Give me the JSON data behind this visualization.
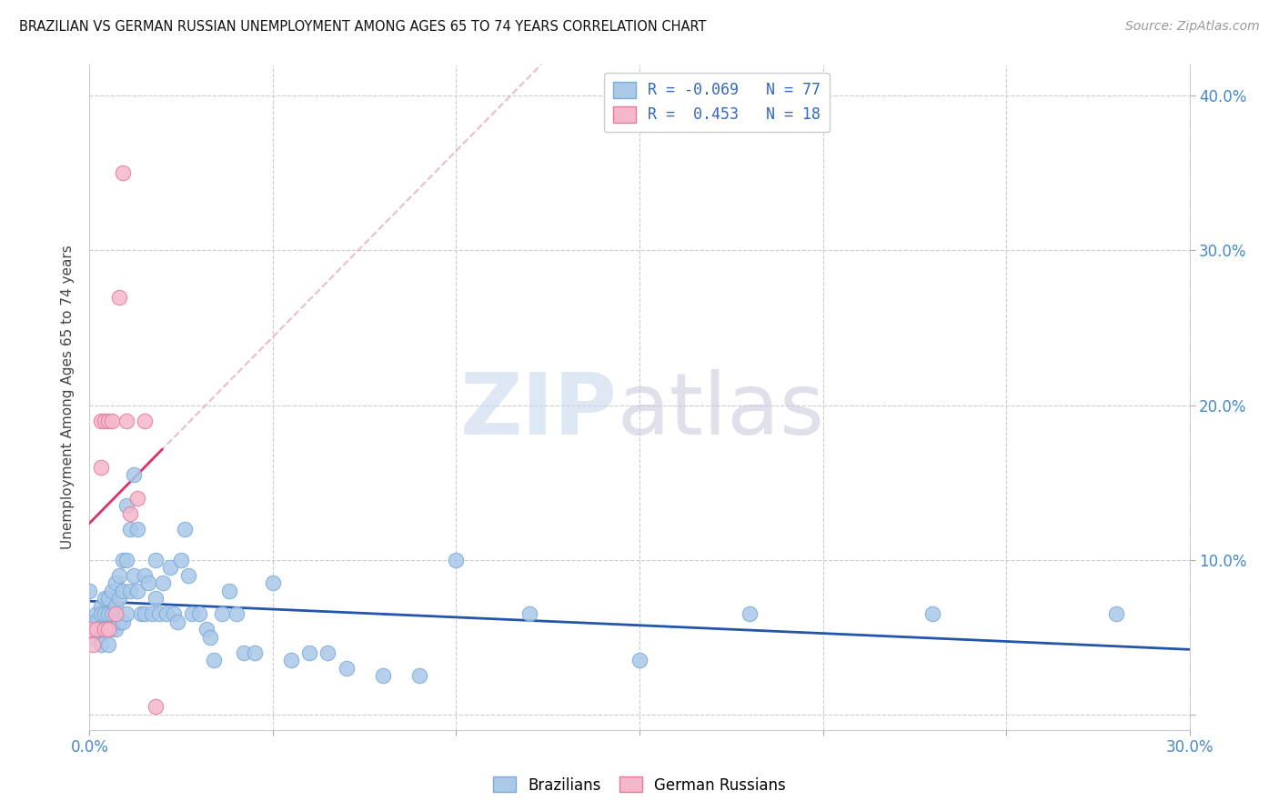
{
  "title": "BRAZILIAN VS GERMAN RUSSIAN UNEMPLOYMENT AMONG AGES 65 TO 74 YEARS CORRELATION CHART",
  "source": "Source: ZipAtlas.com",
  "ylabel": "Unemployment Among Ages 65 to 74 years",
  "xlim": [
    0.0,
    0.3
  ],
  "ylim": [
    -0.01,
    0.42
  ],
  "x_ticks": [
    0.0,
    0.05,
    0.1,
    0.15,
    0.2,
    0.25,
    0.3
  ],
  "y_ticks": [
    0.0,
    0.1,
    0.2,
    0.3,
    0.4
  ],
  "brazil_color": "#aac8e8",
  "brazil_edge": "#7aabda",
  "german_color": "#f5b8cb",
  "german_edge": "#e8789a",
  "brazil_R": -0.069,
  "brazil_N": 77,
  "german_R": 0.453,
  "german_N": 18,
  "brazil_x": [
    0.0,
    0.001,
    0.001,
    0.002,
    0.002,
    0.002,
    0.003,
    0.003,
    0.003,
    0.003,
    0.004,
    0.004,
    0.004,
    0.005,
    0.005,
    0.005,
    0.005,
    0.006,
    0.006,
    0.006,
    0.007,
    0.007,
    0.007,
    0.008,
    0.008,
    0.008,
    0.009,
    0.009,
    0.009,
    0.01,
    0.01,
    0.01,
    0.011,
    0.011,
    0.012,
    0.012,
    0.013,
    0.013,
    0.014,
    0.015,
    0.015,
    0.016,
    0.017,
    0.018,
    0.018,
    0.019,
    0.02,
    0.021,
    0.022,
    0.023,
    0.024,
    0.025,
    0.026,
    0.027,
    0.028,
    0.03,
    0.032,
    0.033,
    0.034,
    0.036,
    0.038,
    0.04,
    0.042,
    0.045,
    0.05,
    0.055,
    0.06,
    0.065,
    0.07,
    0.08,
    0.09,
    0.1,
    0.12,
    0.15,
    0.18,
    0.23,
    0.28
  ],
  "brazil_y": [
    0.08,
    0.06,
    0.05,
    0.065,
    0.06,
    0.055,
    0.07,
    0.065,
    0.055,
    0.045,
    0.075,
    0.065,
    0.055,
    0.075,
    0.065,
    0.055,
    0.045,
    0.08,
    0.065,
    0.055,
    0.085,
    0.07,
    0.055,
    0.09,
    0.075,
    0.06,
    0.1,
    0.08,
    0.06,
    0.135,
    0.1,
    0.065,
    0.12,
    0.08,
    0.155,
    0.09,
    0.12,
    0.08,
    0.065,
    0.09,
    0.065,
    0.085,
    0.065,
    0.1,
    0.075,
    0.065,
    0.085,
    0.065,
    0.095,
    0.065,
    0.06,
    0.1,
    0.12,
    0.09,
    0.065,
    0.065,
    0.055,
    0.05,
    0.035,
    0.065,
    0.08,
    0.065,
    0.04,
    0.04,
    0.085,
    0.035,
    0.04,
    0.04,
    0.03,
    0.025,
    0.025,
    0.1,
    0.065,
    0.035,
    0.065,
    0.065,
    0.065
  ],
  "german_x": [
    0.0,
    0.001,
    0.002,
    0.003,
    0.003,
    0.004,
    0.004,
    0.005,
    0.005,
    0.006,
    0.007,
    0.008,
    0.009,
    0.01,
    0.011,
    0.013,
    0.015,
    0.018
  ],
  "german_y": [
    0.055,
    0.045,
    0.055,
    0.19,
    0.16,
    0.055,
    0.19,
    0.19,
    0.055,
    0.19,
    0.065,
    0.27,
    0.35,
    0.19,
    0.13,
    0.14,
    0.19,
    0.005
  ]
}
